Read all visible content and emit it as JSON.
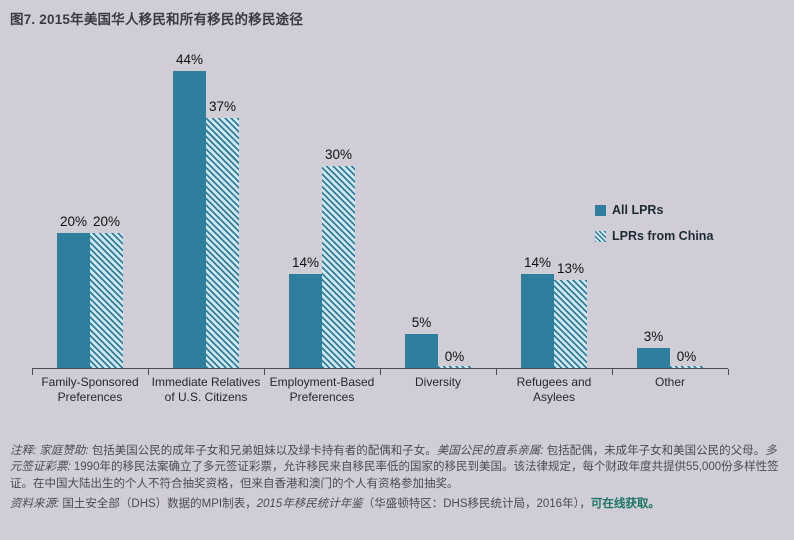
{
  "title": "图7. 2015年美国华人移民和所有移民的移民途径",
  "chart_data": {
    "type": "bar",
    "categories": [
      "Family-Sponsored Preferences",
      "Immediate Relatives of U.S. Citizens",
      "Employment-Based Preferences",
      "Diversity",
      "Refugees and Asylees",
      "Other"
    ],
    "series": [
      {
        "name": "All LPRs",
        "style": "solid",
        "values": [
          20,
          44,
          14,
          5,
          14,
          3
        ]
      },
      {
        "name": "LPRs from China",
        "style": "striped",
        "values": [
          20,
          37,
          30,
          0,
          13,
          0
        ]
      }
    ],
    "unit": "%",
    "value_labels": true,
    "ylim": [
      0,
      46
    ],
    "grid": false,
    "legend_position": "right-middle"
  },
  "colors": {
    "bar_teal": "#2e7e9e",
    "stripe_background": "#d3e7f0",
    "page_background": "#d1cdd7",
    "link_text": "#1b7466",
    "axis": "#4a4a52"
  },
  "notes": {
    "body": [
      {
        "text": "注释: ",
        "style": "italic"
      },
      {
        "text": "家庭赞助: ",
        "style": "italic"
      },
      {
        "text": "包括美国公民的成年子女和兄弟姐妹以及绿卡持有者的配偶和子女。",
        "style": "normal"
      },
      {
        "text": "美国公民的直系亲属: ",
        "style": "italic"
      },
      {
        "text": "包括配偶，未成年子女和美国公民的父母。",
        "style": "normal"
      },
      {
        "text": "多元签证彩票: ",
        "style": "italic"
      },
      {
        "text": "1990年的移民法案确立了多元签证彩票，允许移民来自移民率低的国家的移民到美国。该法律规定，每个财政年度共提供55,000份多样性签证。在中国大陆出生的个人不符合抽奖资格，但来自香港和澳门的个人有资格参加抽奖。",
        "style": "normal"
      }
    ],
    "source": [
      {
        "text": "资料来源: ",
        "style": "italic"
      },
      {
        "text": "国土安全部（DHS）数据的MPI制表，",
        "style": "normal"
      },
      {
        "text": "2015年移民统计年鉴",
        "style": "italic"
      },
      {
        "text": "（华盛顿特区：DHS移民统计局，2016年），",
        "style": "normal"
      },
      {
        "text": "可在线获取。",
        "style": "link"
      }
    ]
  }
}
